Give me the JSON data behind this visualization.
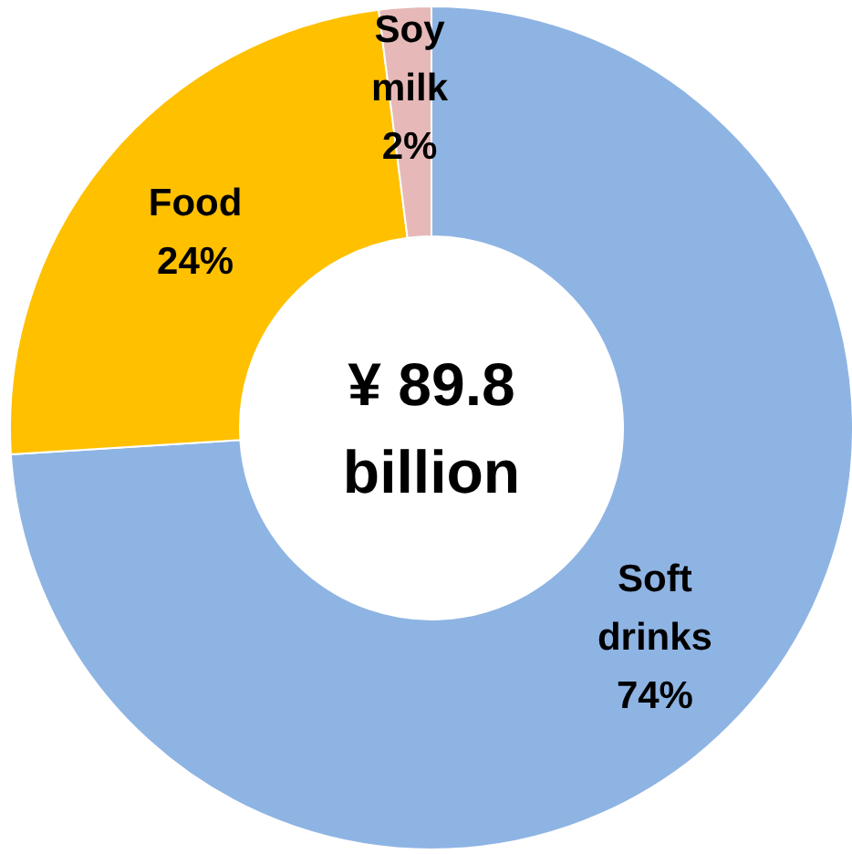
{
  "chart_data": {
    "type": "donut",
    "categories": [
      "Soft drinks",
      "Food",
      "Soy milk"
    ],
    "values": [
      74,
      24,
      2
    ],
    "colors": [
      "#8eb4e3",
      "#ffc000",
      "#e6b9b8"
    ],
    "value_labels": [
      "74%",
      "24%",
      "2%"
    ],
    "annotations": [
      "¥ 89.8 billion"
    ]
  }
}
